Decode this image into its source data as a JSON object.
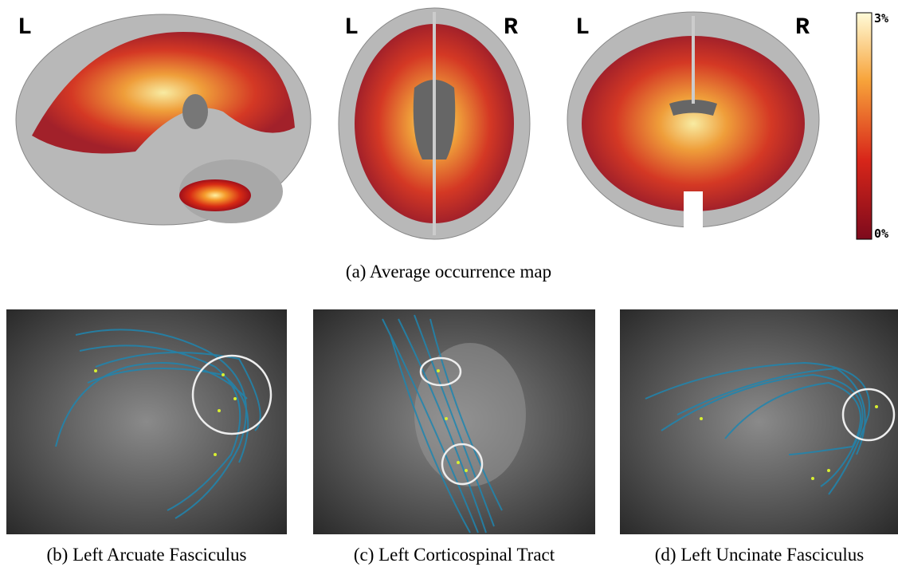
{
  "top": {
    "sagittal": {
      "orientation": [
        "L"
      ]
    },
    "axial": {
      "orientation": [
        "L",
        "R"
      ]
    },
    "coronal": {
      "orientation": [
        "L",
        "R"
      ]
    },
    "colorbar": {
      "max": "3%",
      "min": "0%"
    },
    "caption": "(a) Average occurrence map"
  },
  "bottom": [
    {
      "caption": "(b) Left Arcuate Fasciculus"
    },
    {
      "caption": "(c) Left Corticospinal Tract"
    },
    {
      "caption": "(d) Left Uncinate Fasciculus"
    }
  ]
}
